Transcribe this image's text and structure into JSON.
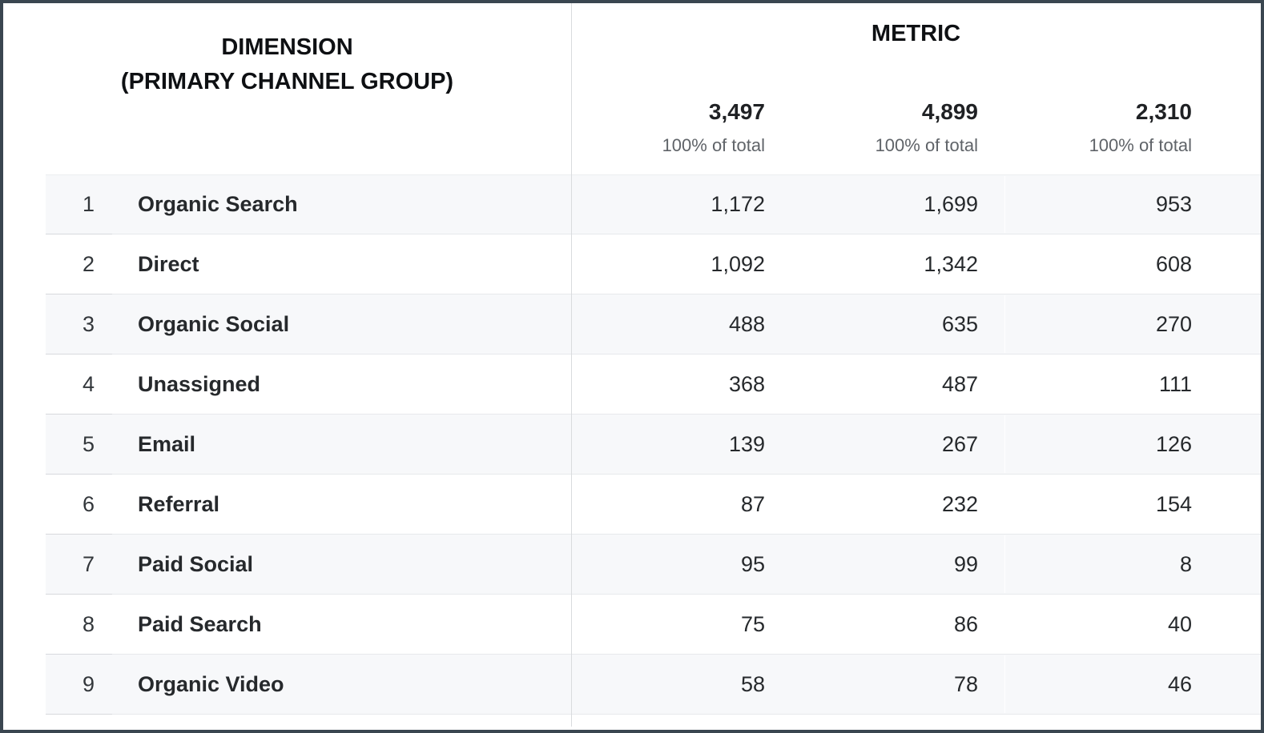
{
  "table": {
    "dimension_header": {
      "line1": "DIMENSION",
      "line2": "(PRIMARY CHANNEL GROUP)"
    },
    "metric_header": "METRIC",
    "totals": [
      {
        "value": "3,497",
        "subtext": "100% of total"
      },
      {
        "value": "4,899",
        "subtext": "100% of total"
      },
      {
        "value": "2,310",
        "subtext": "100% of total"
      }
    ],
    "rows": [
      {
        "index": "1",
        "channel": "Organic Search",
        "values": [
          "1,172",
          "1,699",
          "953"
        ]
      },
      {
        "index": "2",
        "channel": "Direct",
        "values": [
          "1,092",
          "1,342",
          "608"
        ]
      },
      {
        "index": "3",
        "channel": "Organic Social",
        "values": [
          "488",
          "635",
          "270"
        ]
      },
      {
        "index": "4",
        "channel": "Unassigned",
        "values": [
          "368",
          "487",
          "111"
        ]
      },
      {
        "index": "5",
        "channel": "Email",
        "values": [
          "139",
          "267",
          "126"
        ]
      },
      {
        "index": "6",
        "channel": "Referral",
        "values": [
          "87",
          "232",
          "154"
        ]
      },
      {
        "index": "7",
        "channel": "Paid Social",
        "values": [
          "95",
          "99",
          "8"
        ]
      },
      {
        "index": "8",
        "channel": "Paid Search",
        "values": [
          "75",
          "86",
          "40"
        ]
      },
      {
        "index": "9",
        "channel": "Organic Video",
        "values": [
          "58",
          "78",
          "46"
        ]
      }
    ],
    "colors": {
      "frame_border": "#3a4650",
      "row_alt_bg": "#f7f8fa",
      "divider": "#d9dbde",
      "row_border": "#e7e9ec",
      "text_primary": "#26292c",
      "text_secondary": "#5f6368"
    }
  }
}
